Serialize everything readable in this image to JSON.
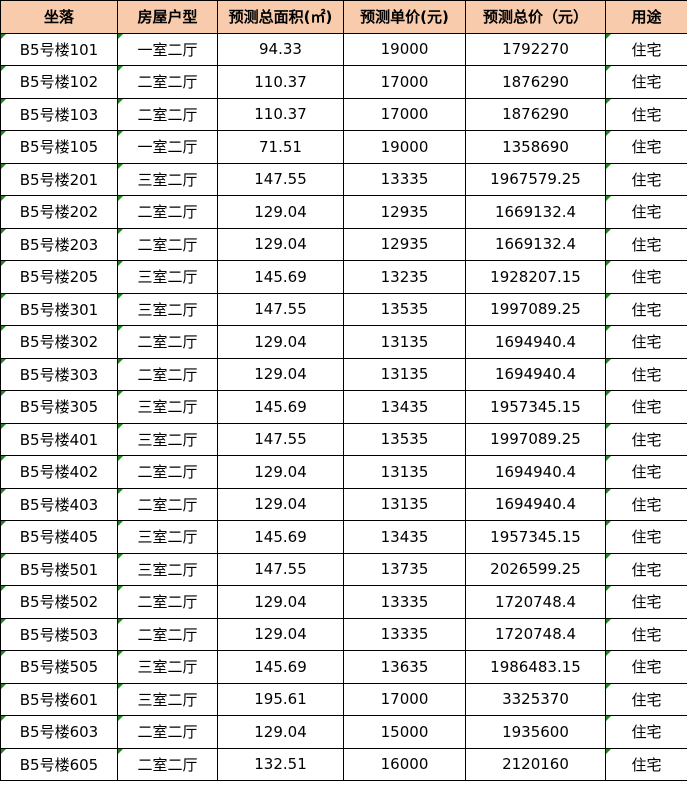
{
  "headers": [
    "坐落",
    "房屋户型",
    "预测总面积(㎡)",
    "预测单价(元)",
    "预测总价（元）",
    "用途"
  ],
  "rows": [
    [
      "B5号楼101",
      "一室二厅",
      "94.33",
      "19000",
      "1792270",
      "住宅"
    ],
    [
      "B5号楼102",
      "二室二厅",
      "110.37",
      "17000",
      "1876290",
      "住宅"
    ],
    [
      "B5号楼103",
      "二室二厅",
      "110.37",
      "17000",
      "1876290",
      "住宅"
    ],
    [
      "B5号楼105",
      "一室二厅",
      "71.51",
      "19000",
      "1358690",
      "住宅"
    ],
    [
      "B5号楼201",
      "三室二厅",
      "147.55",
      "13335",
      "1967579.25",
      "住宅"
    ],
    [
      "B5号楼202",
      "二室二厅",
      "129.04",
      "12935",
      "1669132.4",
      "住宅"
    ],
    [
      "B5号楼203",
      "二室二厅",
      "129.04",
      "12935",
      "1669132.4",
      "住宅"
    ],
    [
      "B5号楼205",
      "三室二厅",
      "145.69",
      "13235",
      "1928207.15",
      "住宅"
    ],
    [
      "B5号楼301",
      "三室二厅",
      "147.55",
      "13535",
      "1997089.25",
      "住宅"
    ],
    [
      "B5号楼302",
      "二室二厅",
      "129.04",
      "13135",
      "1694940.4",
      "住宅"
    ],
    [
      "B5号楼303",
      "二室二厅",
      "129.04",
      "13135",
      "1694940.4",
      "住宅"
    ],
    [
      "B5号楼305",
      "三室二厅",
      "145.69",
      "13435",
      "1957345.15",
      "住宅"
    ],
    [
      "B5号楼401",
      "三室二厅",
      "147.55",
      "13535",
      "1997089.25",
      "住宅"
    ],
    [
      "B5号楼402",
      "二室二厅",
      "129.04",
      "13135",
      "1694940.4",
      "住宅"
    ],
    [
      "B5号楼403",
      "二室二厅",
      "129.04",
      "13135",
      "1694940.4",
      "住宅"
    ],
    [
      "B5号楼405",
      "三室二厅",
      "145.69",
      "13435",
      "1957345.15",
      "住宅"
    ],
    [
      "B5号楼501",
      "三室二厅",
      "147.55",
      "13735",
      "2026599.25",
      "住宅"
    ],
    [
      "B5号楼502",
      "二室二厅",
      "129.04",
      "13335",
      "1720748.4",
      "住宅"
    ],
    [
      "B5号楼503",
      "二室二厅",
      "129.04",
      "13335",
      "1720748.4",
      "住宅"
    ],
    [
      "B5号楼505",
      "三室二厅",
      "145.69",
      "13635",
      "1986483.15",
      "住宅"
    ],
    [
      "B5号楼601",
      "三室二厅",
      "195.61",
      "17000",
      "3325370",
      "住宅"
    ],
    [
      "B5号楼603",
      "二室二厅",
      "129.04",
      "15000",
      "1935600",
      "住宅"
    ],
    [
      "B5号楼605",
      "二室二厅",
      "132.51",
      "16000",
      "2120160",
      "住宅"
    ]
  ]
}
